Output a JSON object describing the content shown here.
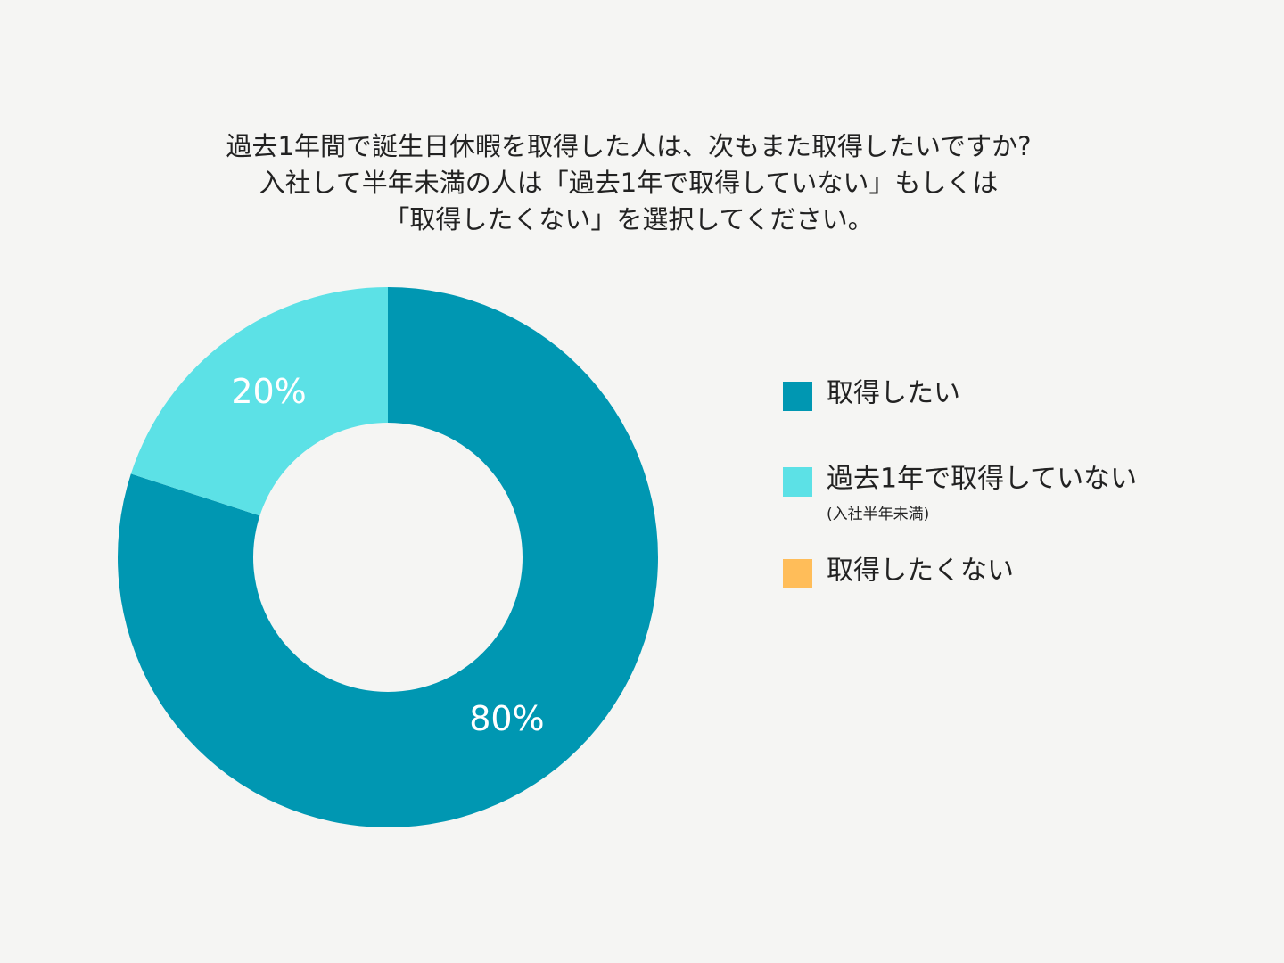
{
  "chart_data": {
    "type": "pie",
    "title": [
      "過去1年間で誕生日休暇を取得した人は、次もまた取得したいですか?",
      "入社して半年未満の人は「過去1年で取得していない」もしくは",
      "「取得したくない」を選択してください。"
    ],
    "categories": [
      "取得したい",
      "過去1年で取得していない",
      "取得したくない"
    ],
    "category_notes": [
      null,
      "(入社半年未満)",
      null
    ],
    "values": [
      80,
      20,
      0
    ],
    "value_labels": [
      "80%",
      "20%",
      null
    ],
    "colors": [
      "#0097b2",
      "#5ce1e6",
      "#ffbd59"
    ],
    "donut": true
  }
}
